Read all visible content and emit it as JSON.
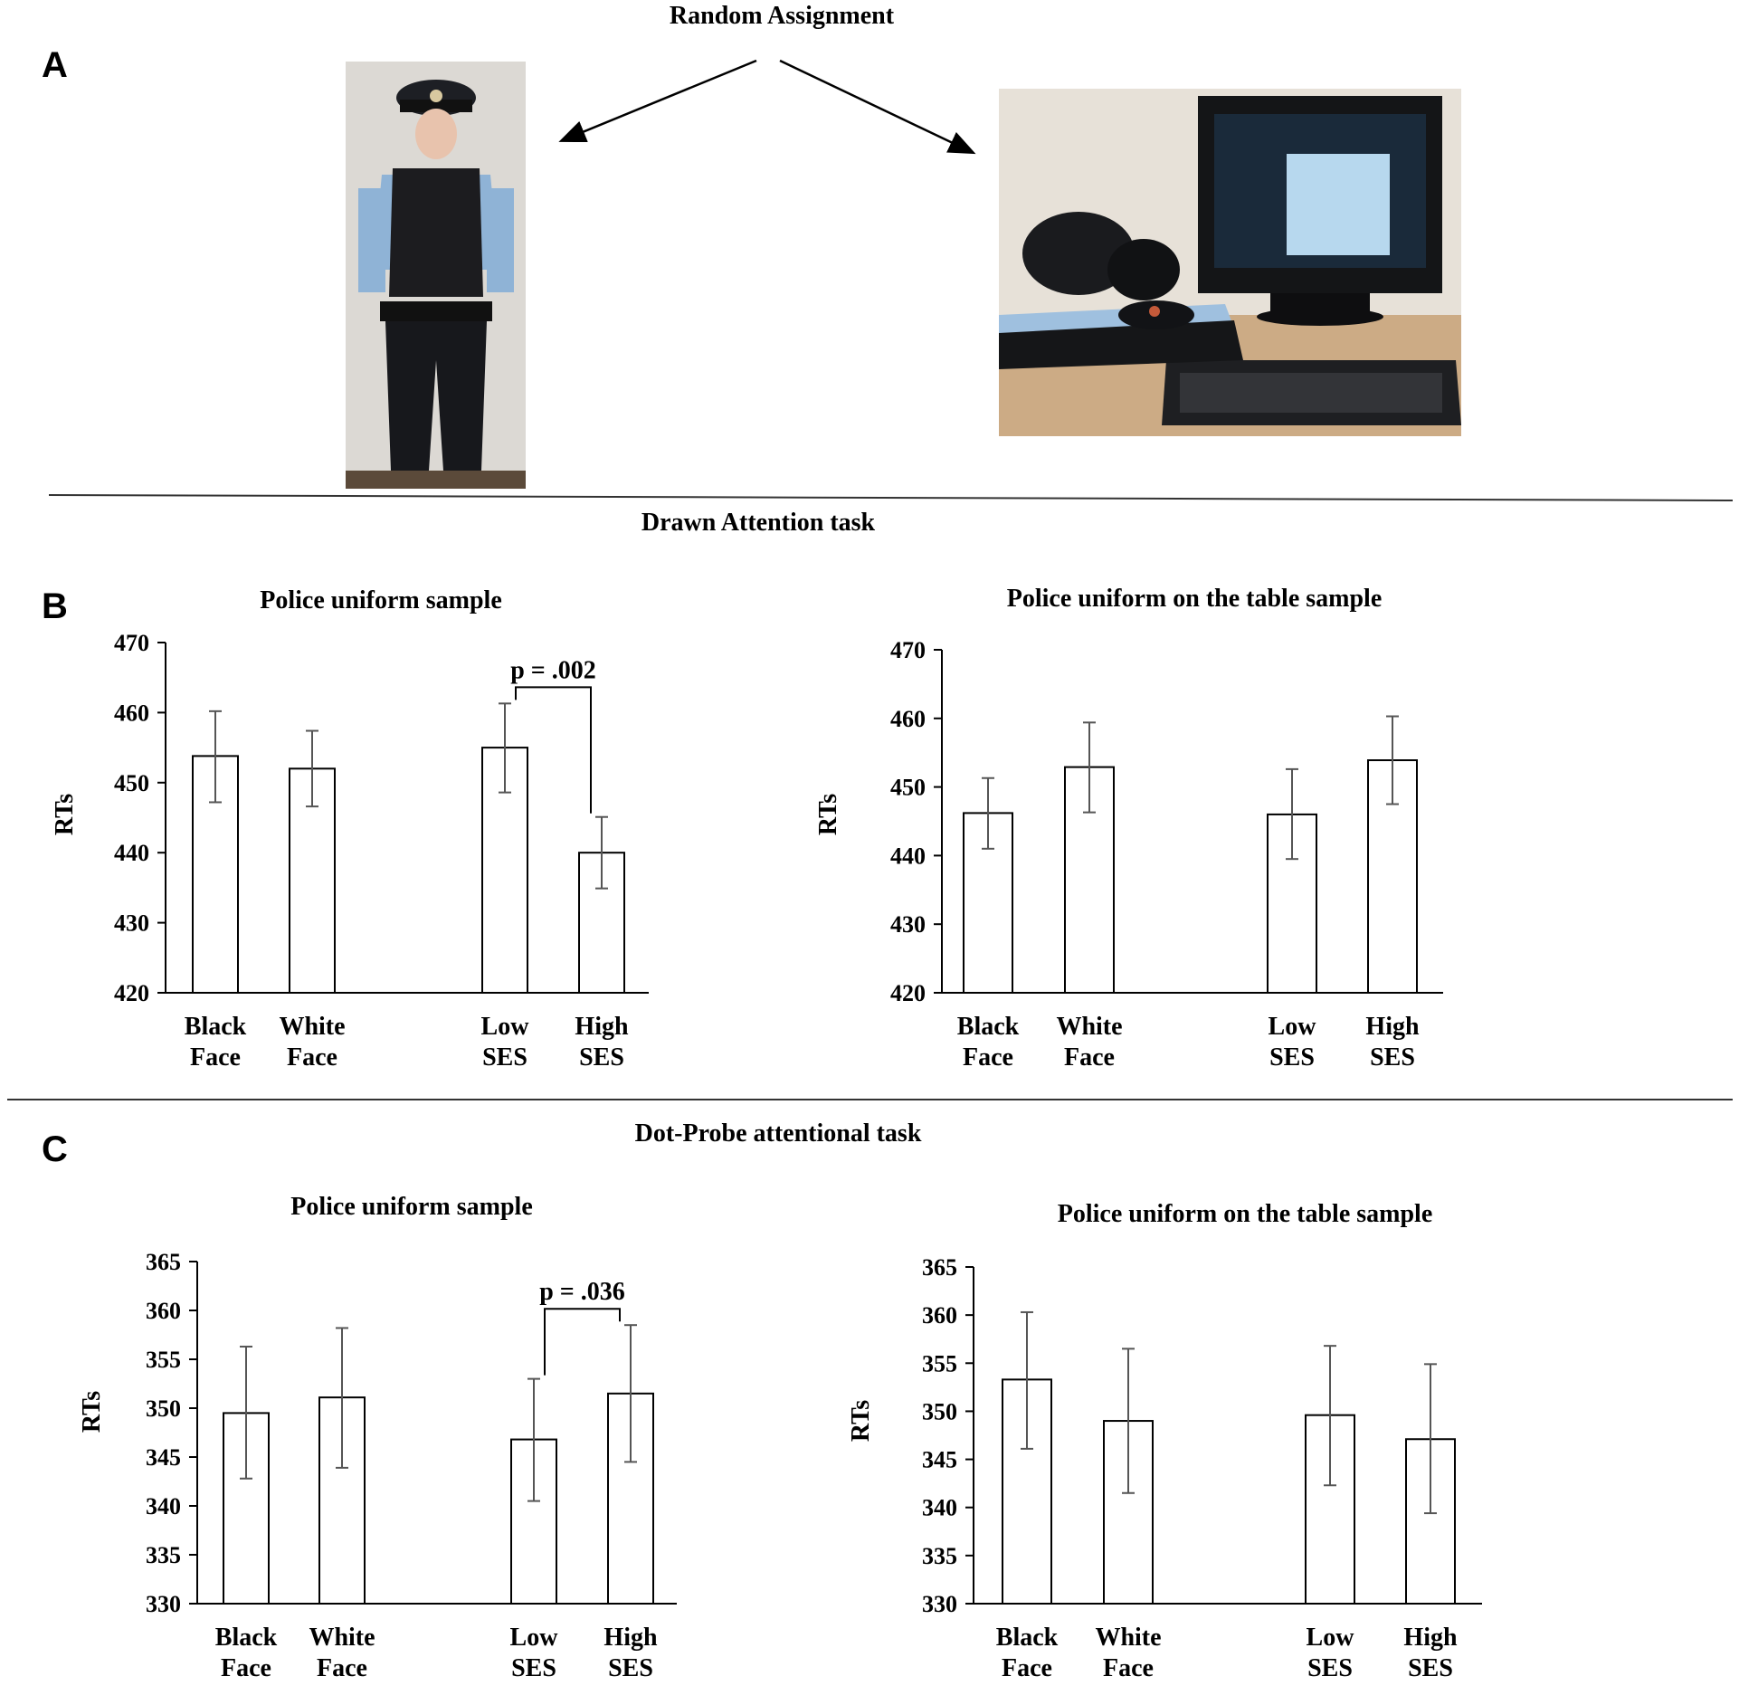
{
  "header": {
    "random_assignment": "Random Assignment"
  },
  "sections": {
    "a": "A",
    "b": "B",
    "c": "C",
    "b_task": "Drawn Attention task",
    "c_task": "Dot-Probe attentional task"
  },
  "photos": {
    "officer": "person in police uniform (photograph)",
    "table": "police uniform on a table next to a computer (photograph)"
  },
  "colors": {
    "line": "#000000",
    "bar_fill": "#ffffff",
    "error_bar": "#555555",
    "divider": "#333333"
  },
  "chart_data": [
    {
      "id": "b-left",
      "type": "bar",
      "title": "Police uniform sample",
      "ylabel": "RTs",
      "ylim": [
        420,
        470
      ],
      "yticks": [
        420,
        430,
        440,
        450,
        460,
        470
      ],
      "categories": [
        "Black Face",
        "White Face",
        "Low SES",
        "High SES"
      ],
      "category_lines": [
        [
          "Black",
          "Face"
        ],
        [
          "White",
          "Face"
        ],
        [
          "Low",
          "SES"
        ],
        [
          "High",
          "SES"
        ]
      ],
      "values": [
        453.8,
        452.0,
        455.0,
        440.0
      ],
      "error_upper": [
        460.2,
        457.4,
        461.3,
        445.1
      ],
      "error_lower": [
        447.2,
        446.6,
        448.6,
        434.9
      ],
      "annotation": {
        "text": "p = .002",
        "between": [
          2,
          3
        ]
      }
    },
    {
      "id": "b-right",
      "type": "bar",
      "title": "Police uniform on the table sample",
      "ylabel": "RTs",
      "ylim": [
        420,
        470
      ],
      "yticks": [
        420,
        430,
        440,
        450,
        460,
        470
      ],
      "categories": [
        "Black Face",
        "White Face",
        "Low SES",
        "High SES"
      ],
      "category_lines": [
        [
          "Black",
          "Face"
        ],
        [
          "White",
          "Face"
        ],
        [
          "Low",
          "SES"
        ],
        [
          "High",
          "SES"
        ]
      ],
      "values": [
        446.2,
        452.9,
        446.0,
        453.9
      ],
      "error_upper": [
        451.3,
        459.4,
        452.6,
        460.3
      ],
      "error_lower": [
        441.0,
        446.3,
        439.5,
        447.5
      ]
    },
    {
      "id": "c-left",
      "type": "bar",
      "title": "Police uniform sample",
      "ylabel": "RTs",
      "ylim": [
        330,
        365
      ],
      "yticks": [
        330,
        335,
        340,
        345,
        350,
        355,
        360,
        365
      ],
      "categories": [
        "Black Face",
        "White Face",
        "Low SES",
        "High SES"
      ],
      "category_lines": [
        [
          "Black",
          "Face"
        ],
        [
          "White",
          "Face"
        ],
        [
          "Low",
          "SES"
        ],
        [
          "High",
          "SES"
        ]
      ],
      "values": [
        349.5,
        351.1,
        346.8,
        351.5
      ],
      "error_upper": [
        356.3,
        358.2,
        353.0,
        358.5
      ],
      "error_lower": [
        342.8,
        343.9,
        340.5,
        344.5
      ],
      "annotation": {
        "text": "p = .036",
        "between": [
          2,
          3
        ]
      }
    },
    {
      "id": "c-right",
      "type": "bar",
      "title": "Police uniform on the table sample",
      "ylabel": "RTs",
      "ylim": [
        330,
        365
      ],
      "yticks": [
        330,
        335,
        340,
        345,
        350,
        355,
        360,
        365
      ],
      "categories": [
        "Black Face",
        "White Face",
        "Low SES",
        "High SES"
      ],
      "category_lines": [
        [
          "Black",
          "Face"
        ],
        [
          "White",
          "Face"
        ],
        [
          "Low",
          "SES"
        ],
        [
          "High",
          "SES"
        ]
      ],
      "values": [
        353.3,
        349.0,
        349.6,
        347.1
      ],
      "error_upper": [
        360.3,
        356.5,
        356.8,
        354.9
      ],
      "error_lower": [
        346.1,
        341.5,
        342.3,
        339.4
      ]
    }
  ]
}
